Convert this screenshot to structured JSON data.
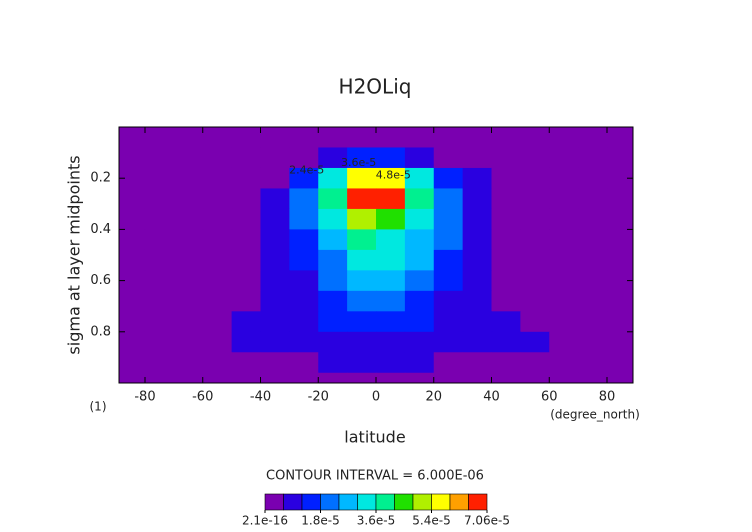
{
  "chart_data": {
    "type": "contour",
    "title": "H2OLiq",
    "x_label": "latitude",
    "y_label": "sigma at layer midpoints",
    "x_units": "(degree_north)",
    "y_units": "(1)",
    "subtitle": "CONTOUR INTERVAL = 6.000E-06",
    "xlim": [
      -89,
      89
    ],
    "ylim": [
      1,
      0
    ],
    "xticks": [
      -80,
      -60,
      -40,
      -20,
      0,
      20,
      40,
      60,
      80
    ],
    "yticks": [
      0.2,
      0.4,
      0.6,
      0.8
    ],
    "x_edges": [
      -90,
      -80,
      -70,
      -60,
      -50,
      -40,
      -30,
      -20,
      -10,
      0,
      10,
      20,
      30,
      40,
      50,
      60,
      70,
      80,
      90
    ],
    "y_edges": [
      0,
      0.08,
      0.16,
      0.24,
      0.32,
      0.4,
      0.48,
      0.56,
      0.64,
      0.72,
      0.8,
      0.88,
      0.96,
      1.0
    ],
    "z": [
      [
        0,
        0,
        0,
        0,
        0,
        0,
        0,
        0,
        0,
        0,
        0,
        0,
        0,
        0,
        0,
        0,
        0,
        0
      ],
      [
        0,
        0,
        0,
        0,
        0,
        0,
        3e-06,
        8e-06,
        1.2e-05,
        1.2e-05,
        8e-06,
        3e-06,
        0,
        0,
        0,
        0,
        0,
        0
      ],
      [
        0,
        0,
        0,
        0,
        0,
        3e-06,
        1.5e-05,
        3e-05,
        5.5e-05,
        5.5e-05,
        3.2e-05,
        1.5e-05,
        6e-06,
        0,
        0,
        0,
        0,
        0
      ],
      [
        0,
        0,
        0,
        0,
        0,
        9e-06,
        2e-05,
        3.8e-05,
        6.8e-05,
        7e-05,
        4e-05,
        2e-05,
        9e-06,
        0,
        0,
        0,
        0,
        0
      ],
      [
        0,
        0,
        0,
        0,
        0,
        1.1e-05,
        2.1e-05,
        3.5e-05,
        4.8e-05,
        4.6e-05,
        3.4e-05,
        2.1e-05,
        1e-05,
        0,
        0,
        0,
        0,
        0
      ],
      [
        0,
        0,
        0,
        0,
        0,
        1e-05,
        1.6e-05,
        2.8e-05,
        3.6e-05,
        3.5e-05,
        2.9e-05,
        1.8e-05,
        1e-05,
        1e-06,
        0,
        0,
        0,
        0
      ],
      [
        0,
        0,
        0,
        0,
        0,
        9e-06,
        1.3e-05,
        2.2e-05,
        3.2e-05,
        3.3e-05,
        2.4e-05,
        1.5e-05,
        9e-06,
        3e-06,
        0,
        0,
        0,
        0
      ],
      [
        0,
        0,
        0,
        0,
        0,
        8e-06,
        1.1e-05,
        1.8e-05,
        2.6e-05,
        2.8e-05,
        2e-05,
        1.2e-05,
        8e-06,
        4e-06,
        0,
        0,
        0,
        0
      ],
      [
        0,
        0,
        0,
        0,
        3e-06,
        7e-06,
        1e-05,
        1.5e-05,
        2e-05,
        2.2e-05,
        1.6e-05,
        1e-05,
        8e-06,
        5e-06,
        2e-06,
        0,
        0,
        0
      ],
      [
        0,
        0,
        0,
        2e-06,
        6e-06,
        8e-06,
        9e-06,
        1.2e-05,
        1.4e-05,
        1.6e-05,
        1.3e-05,
        9e-06,
        8e-06,
        7e-06,
        5e-06,
        2e-06,
        0,
        0
      ],
      [
        0,
        0,
        1e-06,
        5e-06,
        7e-06,
        7e-06,
        7e-06,
        9e-06,
        1e-05,
        1.1e-05,
        9e-06,
        7e-06,
        7e-06,
        6e-06,
        6e-06,
        4e-06,
        0,
        0
      ],
      [
        0,
        0,
        1e-06,
        3e-06,
        4e-06,
        5e-06,
        5e-06,
        6e-06,
        6e-06,
        7e-06,
        6e-06,
        5e-06,
        5e-06,
        4e-06,
        4e-06,
        2e-06,
        0,
        0
      ],
      [
        0,
        0,
        0,
        0,
        0,
        0,
        0,
        0,
        0,
        0,
        0,
        0,
        0,
        0,
        0,
        0,
        0,
        0
      ]
    ],
    "levels": [
      2.1e-16,
      6e-06,
      1.2e-05,
      1.8e-05,
      2.4e-05,
      3e-05,
      3.6e-05,
      4.2e-05,
      4.8e-05,
      5.4e-05,
      6e-05,
      6.6e-05,
      7.06e-05
    ],
    "colors": [
      "#7a00b0",
      "#2a00e0",
      "#0020ff",
      "#0070ff",
      "#00b8ff",
      "#00e8e0",
      "#00f090",
      "#20e000",
      "#b0f000",
      "#ffff00",
      "#ffa000",
      "#ff2000"
    ],
    "colorbar_ticks": [
      {
        "value": 2.1e-16,
        "label": "2.1e-16"
      },
      {
        "value": 1.8e-05,
        "label": "1.8e-5"
      },
      {
        "value": 3.6e-05,
        "label": "3.6e-5"
      },
      {
        "value": 5.4e-05,
        "label": "5.4e-5"
      },
      {
        "value": 7.06e-05,
        "label": "7.06e-5"
      }
    ],
    "annotations": [
      {
        "text": "2.4e-5",
        "x": -24,
        "y": 0.17
      },
      {
        "text": "3.6e-5",
        "x": -6,
        "y": 0.14
      },
      {
        "text": "4.8e-5",
        "x": 6,
        "y": 0.19
      }
    ]
  }
}
